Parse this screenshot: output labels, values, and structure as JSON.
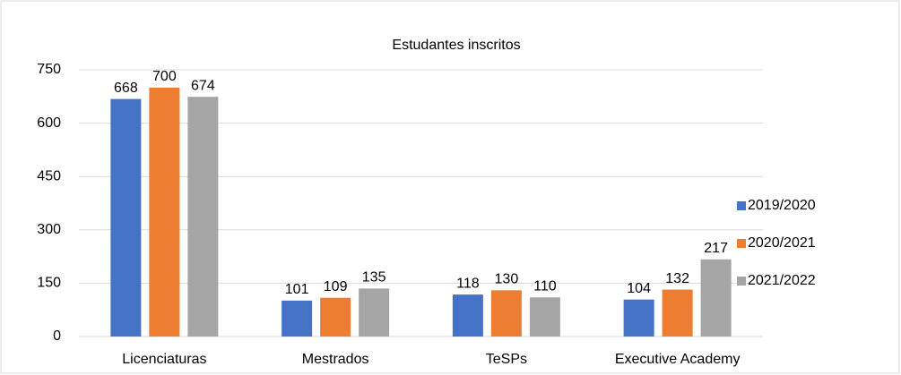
{
  "chart_data": {
    "type": "bar",
    "title": "Estudantes inscritos",
    "categories": [
      "Licenciaturas",
      "Mestrados",
      "TeSPs",
      "Executive Academy"
    ],
    "series": [
      {
        "name": "2019/2020",
        "color": "#4472c4",
        "values": [
          668,
          101,
          118,
          104
        ]
      },
      {
        "name": "2020/2021",
        "color": "#ed7d31",
        "values": [
          700,
          109,
          130,
          132
        ]
      },
      {
        "name": "2021/2022",
        "color": "#a5a5a5",
        "values": [
          674,
          135,
          110,
          217
        ]
      }
    ],
    "ylim": [
      0,
      750
    ],
    "yticks": [
      0,
      150,
      300,
      450,
      600,
      750
    ],
    "grid": true,
    "legend": "right"
  }
}
